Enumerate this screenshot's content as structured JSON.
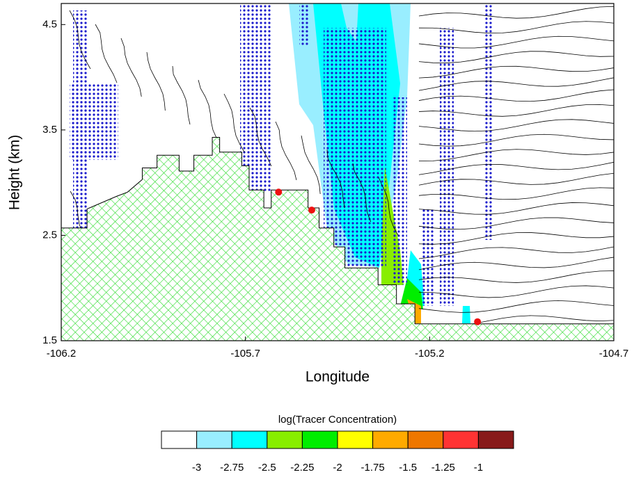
{
  "chart_data": {
    "type": "cross-section",
    "x_label": "Longitude",
    "y_label": "Height (km)",
    "xlim": [
      -106.2,
      -104.7
    ],
    "ylim": [
      1.5,
      4.7
    ],
    "xticks": [
      -106.2,
      -105.7,
      -105.2,
      -104.7
    ],
    "yticks": [
      1.5,
      2.5,
      3.5,
      4.5
    ],
    "terrain": {
      "color": "#33dd33",
      "x": [
        -106.2,
        -106.13,
        -106.13,
        -106.05,
        -106.02,
        -105.98,
        -105.98,
        -105.94,
        -105.94,
        -105.88,
        -105.88,
        -105.84,
        -105.84,
        -105.79,
        -105.79,
        -105.77,
        -105.77,
        -105.71,
        -105.71,
        -105.69,
        -105.69,
        -105.65,
        -105.65,
        -105.63,
        -105.63,
        -105.53,
        -105.53,
        -105.5,
        -105.5,
        -105.46,
        -105.46,
        -105.43,
        -105.43,
        -105.34,
        -105.34,
        -105.29,
        -105.29,
        -105.24,
        -105.24,
        -104.7
      ],
      "y": [
        2.57,
        2.57,
        2.75,
        2.87,
        2.91,
        3.03,
        3.14,
        3.14,
        3.26,
        3.26,
        3.11,
        3.11,
        3.26,
        3.26,
        3.43,
        3.43,
        3.29,
        3.29,
        3.16,
        3.16,
        2.93,
        2.93,
        2.76,
        2.76,
        2.93,
        2.93,
        2.76,
        2.76,
        2.57,
        2.57,
        2.39,
        2.39,
        2.19,
        2.19,
        2.03,
        2.03,
        1.85,
        1.85,
        1.66,
        1.66
      ]
    },
    "points": {
      "color": "#ee1111",
      "x": [
        -105.61,
        -105.52,
        -105.07
      ],
      "y": [
        2.91,
        2.74,
        1.68
      ]
    },
    "colorbar": {
      "title": "log(Tracer Concentration)",
      "levels": [
        -3,
        -2.75,
        -2.5,
        -2.25,
        -2,
        -1.75,
        -1.5,
        -1.25,
        -1
      ],
      "colors": [
        "#ffffff",
        "#99eeff",
        "#00ffff",
        "#88ee00",
        "#00ee00",
        "#ffff00",
        "#ffaa00",
        "#ee7700",
        "#ff3333",
        "#881a1a"
      ]
    }
  }
}
